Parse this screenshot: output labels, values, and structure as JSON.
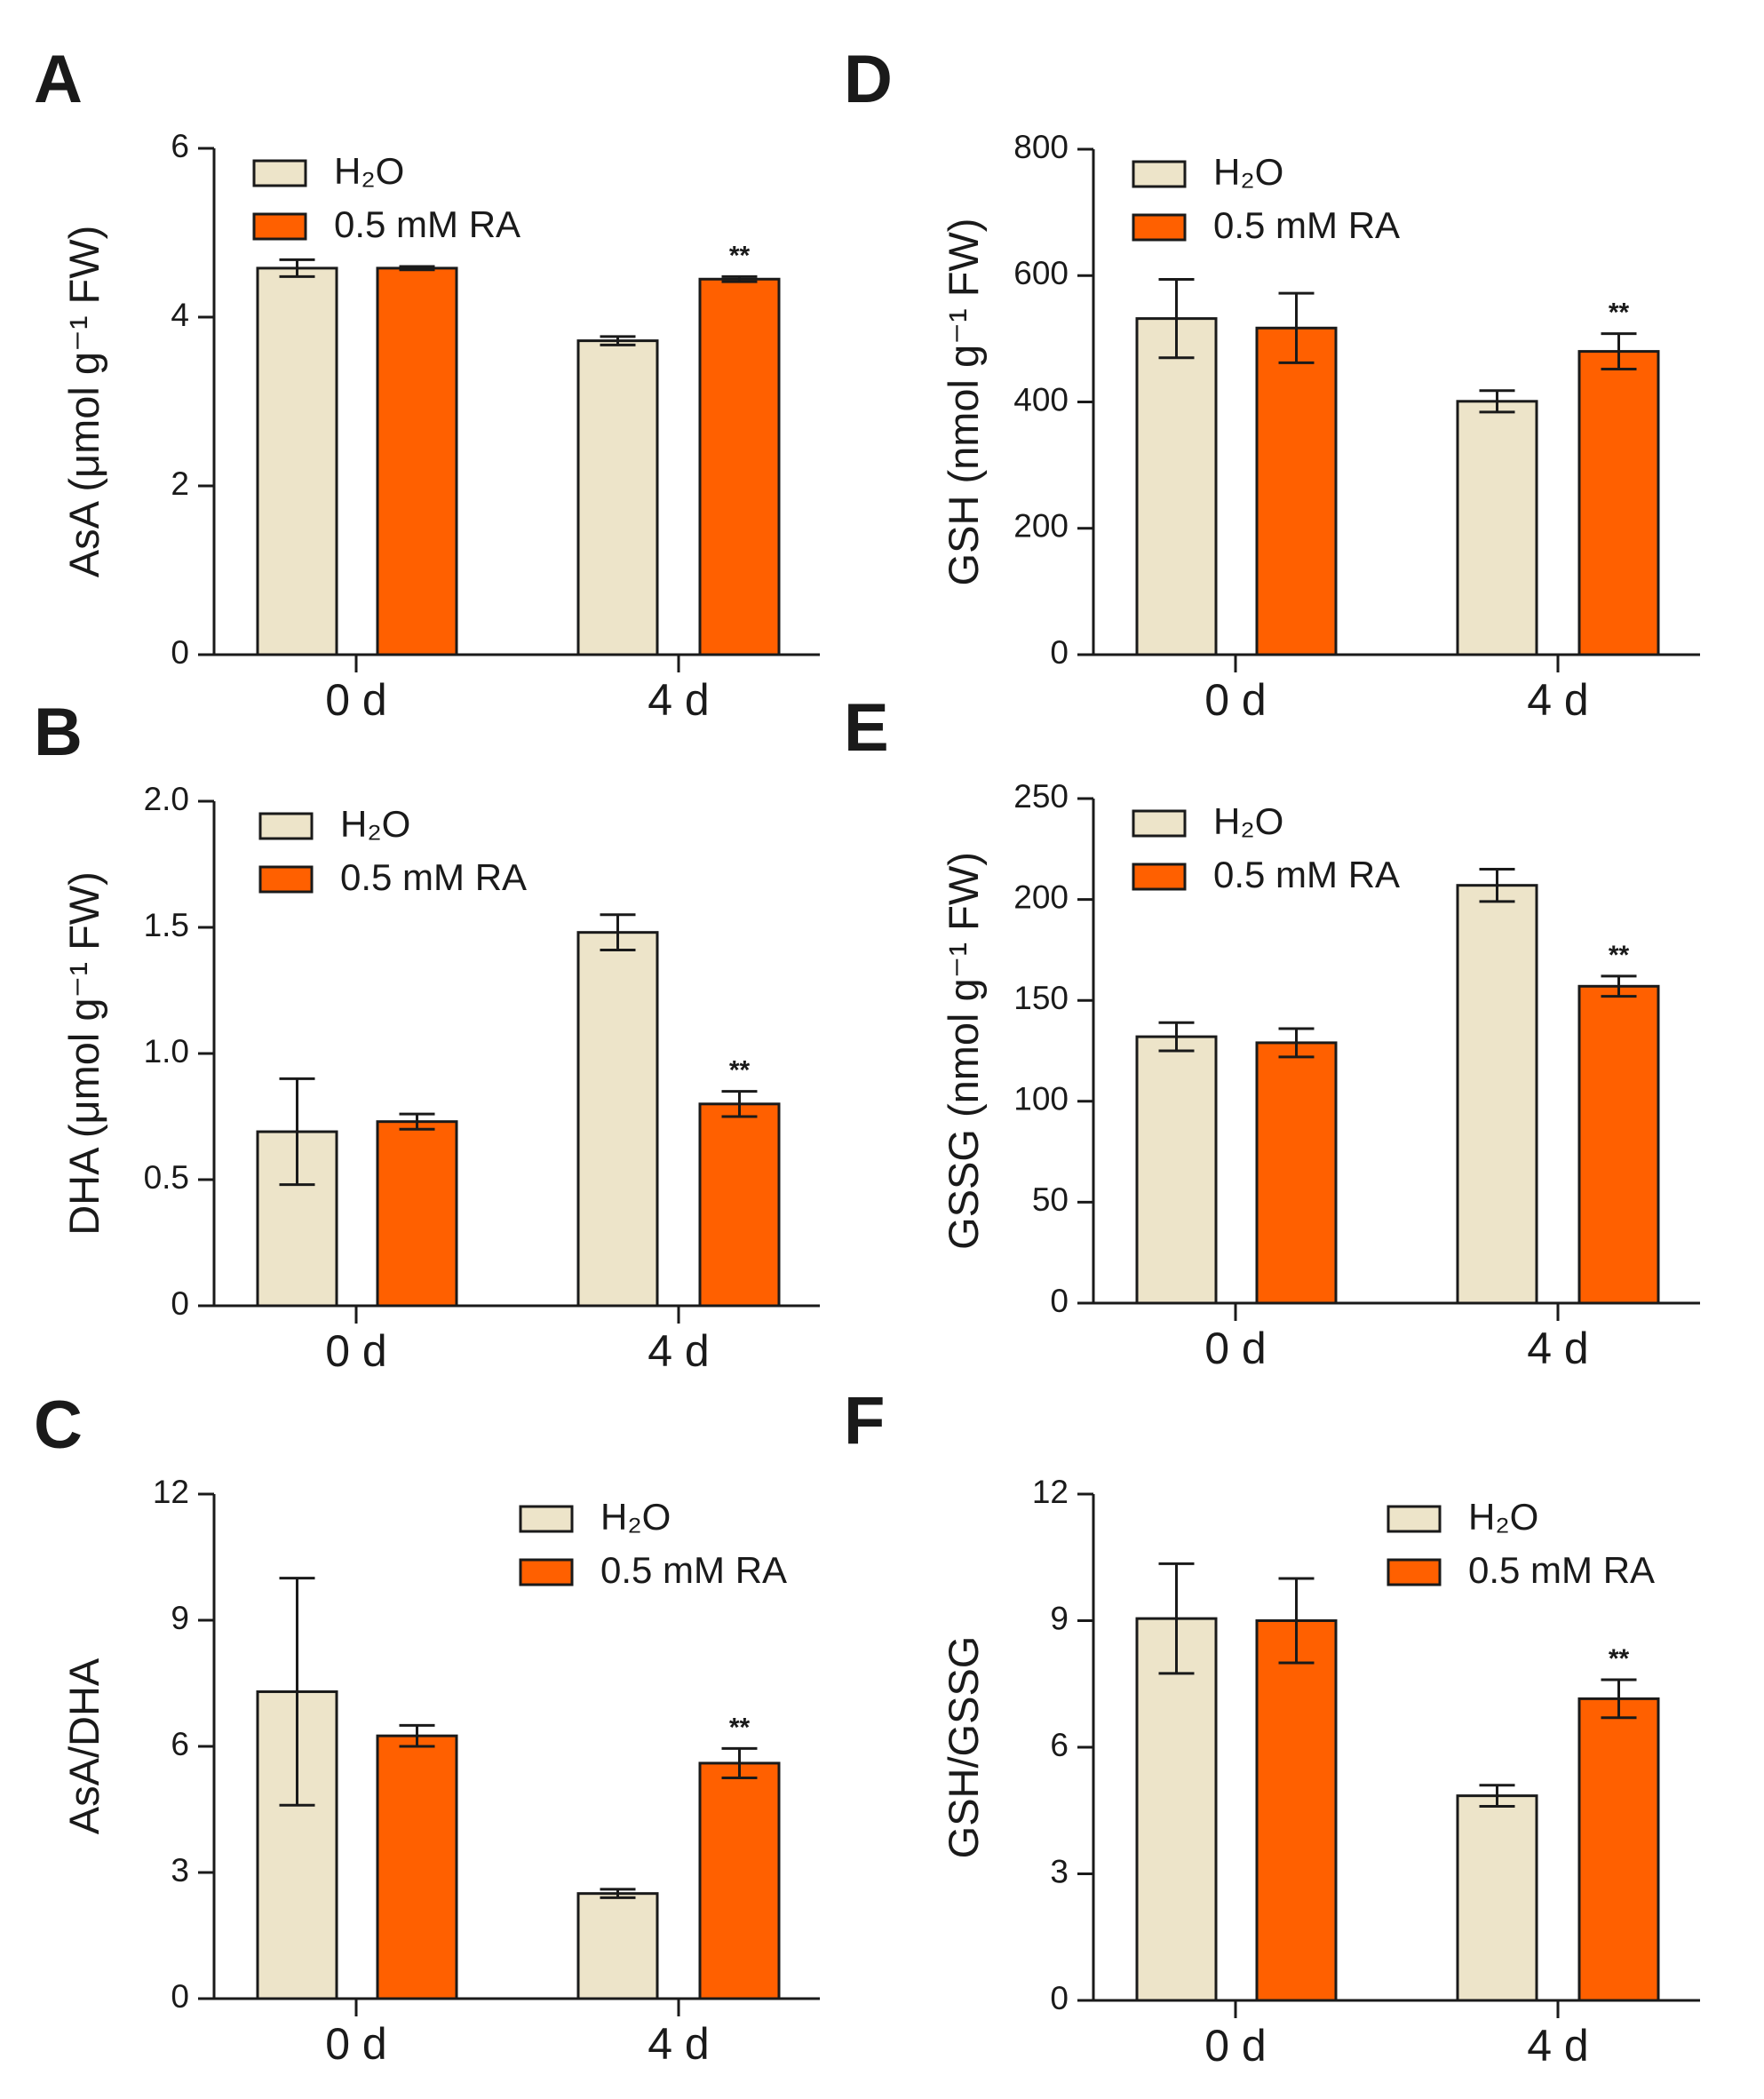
{
  "colors": {
    "h2o": "#ede4c9",
    "ra": "#ff6000",
    "axis": "#1a1a1a"
  },
  "chart_data": [
    {
      "panel": "A",
      "type": "bar",
      "ylabel": "AsA (μmol g⁻¹ FW)",
      "ylim": [
        0,
        6
      ],
      "yticks": [
        "0",
        "2",
        "4",
        "6"
      ],
      "ytick_values": [
        0,
        2,
        4,
        6
      ],
      "categories": [
        "0 d",
        "4 d"
      ],
      "legend": [
        "H₂O",
        "0.5 mM RA"
      ],
      "legend_placement": "top-left",
      "series": [
        {
          "name": "H₂O",
          "values": [
            4.58,
            3.72
          ],
          "errors": [
            0.1,
            0.05
          ]
        },
        {
          "name": "0.5 mM RA",
          "values": [
            4.58,
            4.45
          ],
          "errors": [
            0.02,
            0.03
          ]
        }
      ],
      "annotations": [
        {
          "category": "4 d",
          "series": "0.5 mM RA",
          "text": "**"
        }
      ]
    },
    {
      "panel": "B",
      "type": "bar",
      "ylabel": "DHA (μmol g⁻¹ FW)",
      "ylim": [
        0,
        2
      ],
      "yticks": [
        "0",
        "0.5",
        "1.0",
        "1.5",
        "2.0"
      ],
      "ytick_values": [
        0,
        0.5,
        1,
        1.5,
        2
      ],
      "categories": [
        "0 d",
        "4 d"
      ],
      "legend": [
        "H₂O",
        "0.5 mM RA"
      ],
      "legend_placement": "top-left",
      "series": [
        {
          "name": "H₂O",
          "values": [
            0.69,
            1.48
          ],
          "errors": [
            0.21,
            0.07
          ]
        },
        {
          "name": "0.5 mM RA",
          "values": [
            0.73,
            0.8
          ],
          "errors": [
            0.03,
            0.05
          ]
        }
      ],
      "annotations": [
        {
          "category": "4 d",
          "series": "0.5 mM RA",
          "text": "**"
        }
      ]
    },
    {
      "panel": "C",
      "type": "bar",
      "ylabel": "AsA/DHA",
      "ylim": [
        0,
        12
      ],
      "yticks": [
        "0",
        "3",
        "6",
        "9",
        "12"
      ],
      "ytick_values": [
        0,
        3,
        6,
        9,
        12
      ],
      "categories": [
        "0 d",
        "4 d"
      ],
      "legend": [
        "H₂O",
        "0.5 mM RA"
      ],
      "legend_placement": "top-right",
      "series": [
        {
          "name": "H₂O",
          "values": [
            7.3,
            2.5
          ],
          "errors": [
            2.7,
            0.1
          ]
        },
        {
          "name": "0.5 mM RA",
          "values": [
            6.25,
            5.6
          ],
          "errors": [
            0.25,
            0.35
          ]
        }
      ],
      "annotations": [
        {
          "category": "4 d",
          "series": "0.5 mM RA",
          "text": "**"
        }
      ]
    },
    {
      "panel": "D",
      "type": "bar",
      "ylabel": "GSH (nmol g⁻¹ FW)",
      "ylim": [
        0,
        800
      ],
      "yticks": [
        "0",
        "200",
        "400",
        "600",
        "800"
      ],
      "ytick_values": [
        0,
        200,
        400,
        600,
        800
      ],
      "categories": [
        "0 d",
        "4 d"
      ],
      "legend": [
        "H₂O",
        "0.5 mM RA"
      ],
      "legend_placement": "top-left",
      "series": [
        {
          "name": "H₂O",
          "values": [
            532,
            401
          ],
          "errors": [
            62,
            17
          ]
        },
        {
          "name": "0.5 mM RA",
          "values": [
            517,
            480
          ],
          "errors": [
            55,
            28
          ]
        }
      ],
      "annotations": [
        {
          "category": "4 d",
          "series": "0.5 mM RA",
          "text": "**"
        }
      ]
    },
    {
      "panel": "E",
      "type": "bar",
      "ylabel": "GSSG (nmol g⁻¹ FW)",
      "ylim": [
        0,
        250
      ],
      "yticks": [
        "0",
        "50",
        "100",
        "150",
        "200",
        "250"
      ],
      "ytick_values": [
        0,
        50,
        100,
        150,
        200,
        250
      ],
      "categories": [
        "0 d",
        "4 d"
      ],
      "legend": [
        "H₂O",
        "0.5 mM RA"
      ],
      "legend_placement": "top-left",
      "series": [
        {
          "name": "H₂O",
          "values": [
            132,
            207
          ],
          "errors": [
            7,
            8
          ]
        },
        {
          "name": "0.5 mM RA",
          "values": [
            129,
            157
          ],
          "errors": [
            7,
            5
          ]
        }
      ],
      "annotations": [
        {
          "category": "4 d",
          "series": "0.5 mM RA",
          "text": "**"
        }
      ]
    },
    {
      "panel": "F",
      "type": "bar",
      "ylabel": "GSH/GSSG",
      "ylim": [
        0,
        12
      ],
      "yticks": [
        "0",
        "3",
        "6",
        "9",
        "12"
      ],
      "ytick_values": [
        0,
        3,
        6,
        9,
        12
      ],
      "categories": [
        "0 d",
        "4 d"
      ],
      "legend": [
        "H₂O",
        "0.5 mM RA"
      ],
      "legend_placement": "top-right",
      "series": [
        {
          "name": "H₂O",
          "values": [
            9.05,
            4.85
          ],
          "errors": [
            1.3,
            0.25
          ]
        },
        {
          "name": "0.5 mM RA",
          "values": [
            9.0,
            7.15
          ],
          "errors": [
            1.0,
            0.45
          ]
        }
      ],
      "annotations": [
        {
          "category": "4 d",
          "series": "0.5 mM RA",
          "text": "**"
        }
      ]
    }
  ]
}
